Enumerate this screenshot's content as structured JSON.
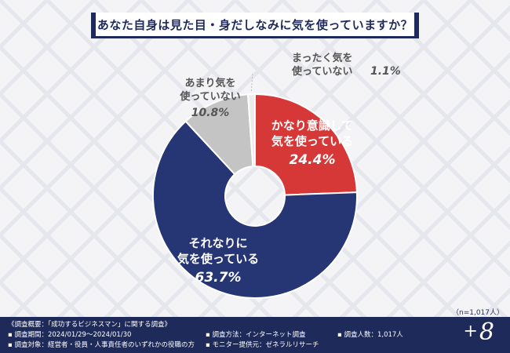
{
  "title": "あなた自身は見た目・身だしなみに気を使っていますか？",
  "chart_data": {
    "type": "pie",
    "donut": true,
    "slices": [
      {
        "label_lines": [
          "かなり意識して",
          "気を使っている"
        ],
        "value": 24.4,
        "value_text": "24.4%",
        "color": "#d63838"
      },
      {
        "label_lines": [
          "それなりに",
          "気を使っている"
        ],
        "value": 63.7,
        "value_text": "63.7%",
        "color": "#263574"
      },
      {
        "label_lines": [
          "あまり気を",
          "使っていない"
        ],
        "value": 10.8,
        "value_text": "10.8%",
        "color": "#c4c4c4"
      },
      {
        "label_lines": [
          "まったく気を",
          "使っていない"
        ],
        "value": 1.1,
        "value_text": "1.1%",
        "color": "#ececec"
      }
    ]
  },
  "sample_note": "（n=1,017人）",
  "footer": {
    "line1": "《調査概要：「成功するビジネスマン」に関する調査》",
    "line2": "▪ 調査期間：2024/01/29～2024/01/30",
    "line3": "▪ 調査対象：経営者・役員・人事責任者のいずれかの役職の方",
    "method": "▪ 調査方法：インターネット調査",
    "provider": "▪ モニター提供元：ゼネラルリサーチ",
    "count": "▪ 調査人数：1,017人"
  },
  "brand": {
    "plus": "+",
    "num": "8"
  }
}
